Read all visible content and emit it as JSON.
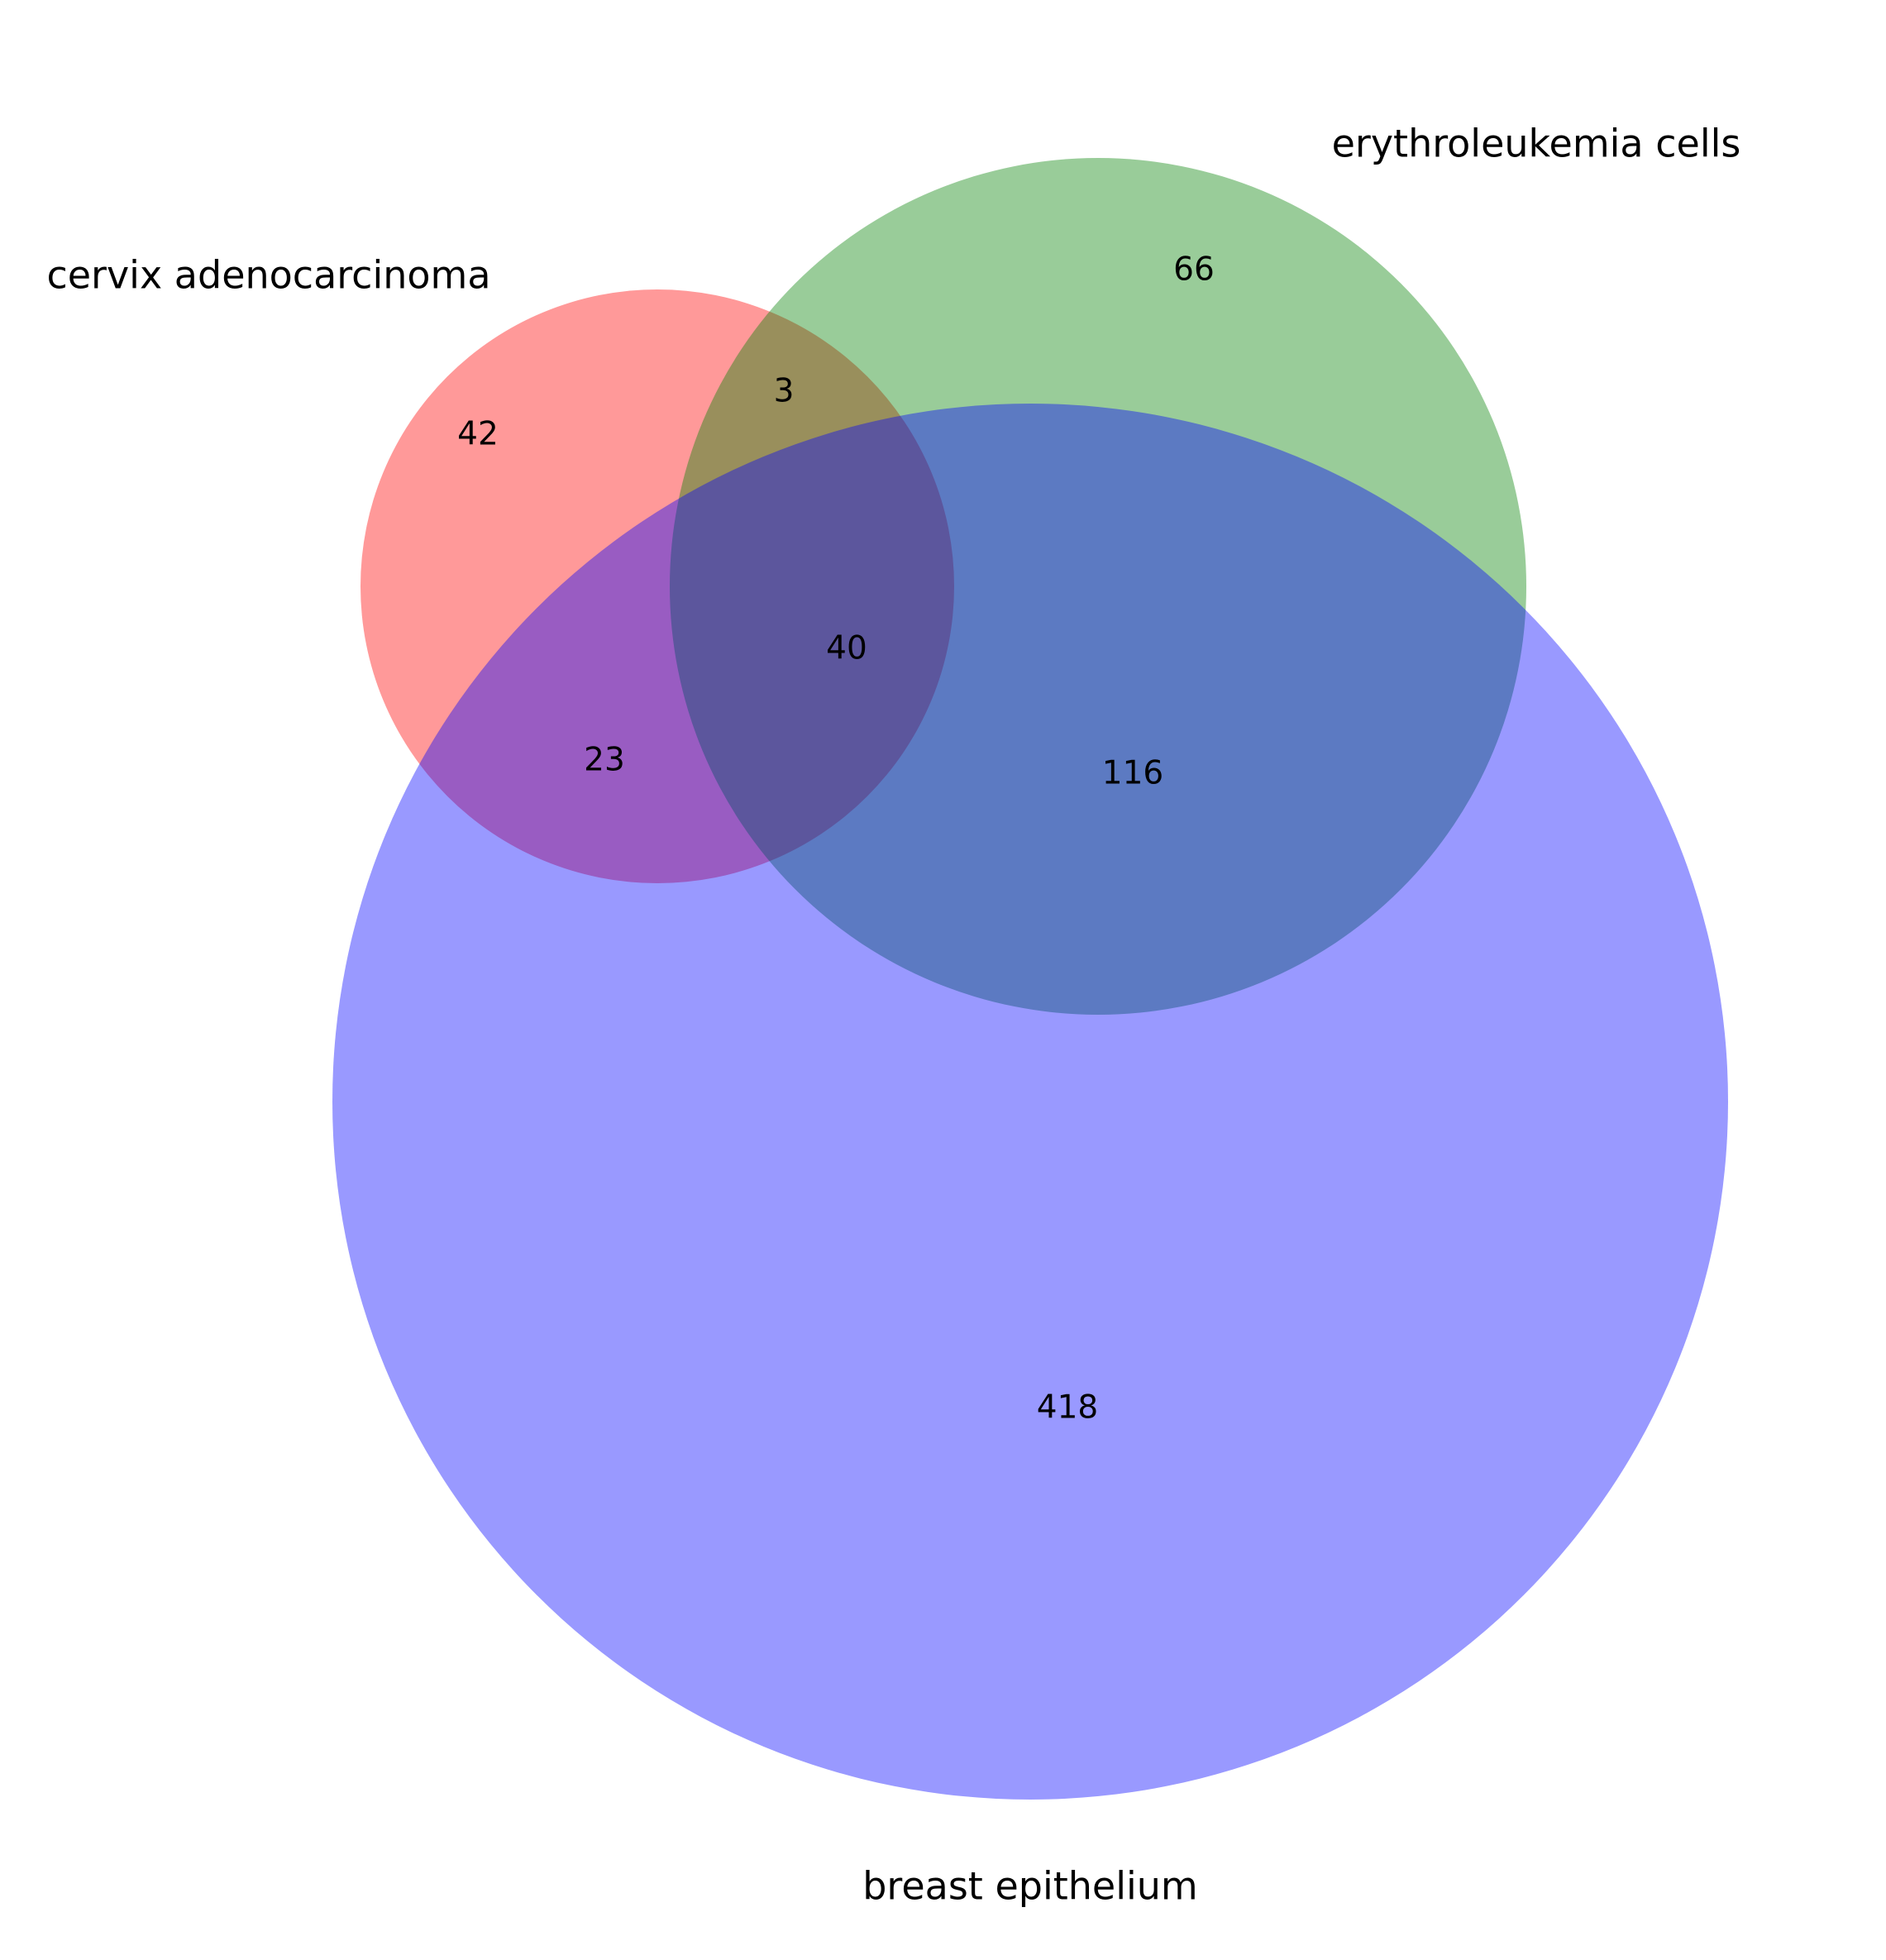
{
  "chart_data": {
    "type": "venn",
    "sets": [
      {
        "name": "cervix adenocarcinoma",
        "color": "#ff0000"
      },
      {
        "name": "erythroleukemia cells",
        "color": "#008000"
      },
      {
        "name": "breast epithelium",
        "color": "#0000ff"
      }
    ],
    "regions": {
      "cervix_only": 42,
      "erythroleukemia_only": 66,
      "cervix_and_erythroleukemia_only": 3,
      "all_three": 40,
      "cervix_and_breast_only": 23,
      "erythroleukemia_and_breast_only": 116,
      "breast_only": 418
    }
  }
}
